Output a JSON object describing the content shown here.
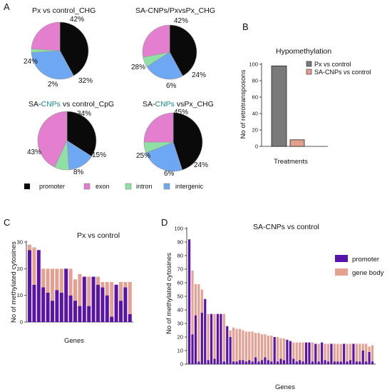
{
  "panels": {
    "a": "A",
    "b": "B",
    "c": "C",
    "d": "D"
  },
  "colors": {
    "promoter": "#0a0a0a",
    "exon": "#e47fd0",
    "intron": "#8fe0a4",
    "intergenic": "#6fa8f2",
    "px_bar": "#7a7a7a",
    "sa_bar": "#e3a08f",
    "gene_promoter": "#5a13a8",
    "gene_body": "#e5a092"
  },
  "pie_legend": [
    {
      "name": "promoter",
      "color": "#0a0a0a"
    },
    {
      "name": "exon",
      "color": "#e47fd0"
    },
    {
      "name": "intron",
      "color": "#8fe0a4"
    },
    {
      "name": "intergenic",
      "color": "#6fa8f2"
    }
  ],
  "chart_data": [
    {
      "type": "pie",
      "title": "Px vs control_CHG",
      "labels": [
        "promoter",
        "intergenic",
        "intron",
        "exon"
      ],
      "values": [
        42,
        32,
        2,
        24
      ],
      "value_labels": [
        "42%",
        "32%",
        "2%",
        "24%"
      ]
    },
    {
      "type": "pie",
      "title": "SA-CNPs/PxvsPx_CHG",
      "labels": [
        "promoter",
        "intergenic",
        "intron",
        "exon"
      ],
      "values": [
        42,
        24,
        6,
        28
      ],
      "value_labels": [
        "42%",
        "24%",
        "6%",
        "28%"
      ]
    },
    {
      "type": "pie",
      "title_parts": [
        "SA-",
        "CNPs",
        " vs control_CpG"
      ],
      "labels": [
        "promoter",
        "intergenic",
        "intron",
        "exon"
      ],
      "values": [
        34,
        15,
        8,
        43
      ],
      "value_labels": [
        "34%",
        "15%",
        "8%",
        "43%"
      ]
    },
    {
      "type": "pie",
      "title_parts": [
        "SA-",
        "CNPs",
        " vsPx_CHG"
      ],
      "labels": [
        "promoter",
        "intergenic",
        "intron",
        "exon"
      ],
      "values": [
        45,
        24,
        6,
        25
      ],
      "value_labels": [
        "45%",
        "24%",
        "6%",
        "25%"
      ]
    },
    {
      "type": "bar",
      "title": "Hypomethylation",
      "categories": [
        "Px vs control",
        "SA-CNPs vs control"
      ],
      "values": [
        98,
        8
      ],
      "ylabel": "No of retrotransposons",
      "xlabel": "Treatments",
      "ylim": [
        0,
        100
      ],
      "yticks": [
        0,
        20,
        40,
        60,
        80,
        100
      ],
      "legend": [
        "Px vs control",
        "SA-CNPs vs control"
      ],
      "legend_position": "top-right"
    },
    {
      "type": "bar",
      "stacked": true,
      "title": "Px vs control",
      "ylabel": "No of methylated cytosines",
      "xlabel": "Genes",
      "ylim": [
        0,
        30
      ],
      "yticks": [
        0,
        10,
        20,
        30
      ],
      "series": [
        {
          "name": "promoter",
          "values": [
            27,
            14,
            27,
            13,
            11,
            8,
            12,
            11,
            20,
            10,
            8,
            6,
            17,
            6,
            17,
            14,
            13,
            10,
            2,
            14,
            8,
            13,
            3
          ]
        },
        {
          "name": "gene body",
          "values": [
            2,
            14,
            0,
            7,
            9,
            12,
            8,
            9,
            0,
            10,
            8,
            12,
            0,
            11,
            0,
            3,
            2,
            5,
            13,
            0,
            7,
            2,
            12
          ]
        }
      ]
    },
    {
      "type": "bar",
      "stacked": true,
      "title": "SA-CNPs vs control",
      "ylabel": "No of methylated cytosines",
      "xlabel": "Genes",
      "ylim": [
        0,
        100
      ],
      "yticks": [
        0,
        10,
        20,
        30,
        40,
        50,
        60,
        70,
        80,
        90,
        100
      ],
      "legend": [
        "promoter",
        "gene body"
      ],
      "legend_position": "right",
      "series": [
        {
          "name": "promoter",
          "values": [
            92,
            22,
            36,
            2,
            38,
            48,
            3,
            37,
            4,
            37,
            37,
            2,
            28,
            20,
            2,
            2,
            3,
            3,
            2,
            3,
            2,
            5,
            2,
            3,
            5,
            3,
            2,
            20,
            2,
            4,
            3,
            18,
            17,
            4,
            2,
            3,
            2,
            16,
            16,
            2,
            15,
            2,
            16,
            3,
            2,
            15,
            2,
            2,
            2,
            15,
            2,
            3,
            15,
            2,
            2,
            10,
            2,
            9,
            2
          ]
        },
        {
          "name": "gene body",
          "values": [
            0,
            47,
            23,
            57,
            17,
            0,
            34,
            0,
            33,
            0,
            0,
            35,
            0,
            5,
            25,
            24,
            23,
            22,
            22,
            21,
            22,
            18,
            21,
            19,
            17,
            18,
            19,
            0,
            18,
            15,
            16,
            0,
            0,
            12,
            14,
            13,
            14,
            0,
            0,
            14,
            0,
            13,
            0,
            12,
            13,
            0,
            13,
            13,
            13,
            0,
            13,
            12,
            0,
            13,
            13,
            5,
            13,
            4,
            12
          ]
        }
      ]
    }
  ]
}
